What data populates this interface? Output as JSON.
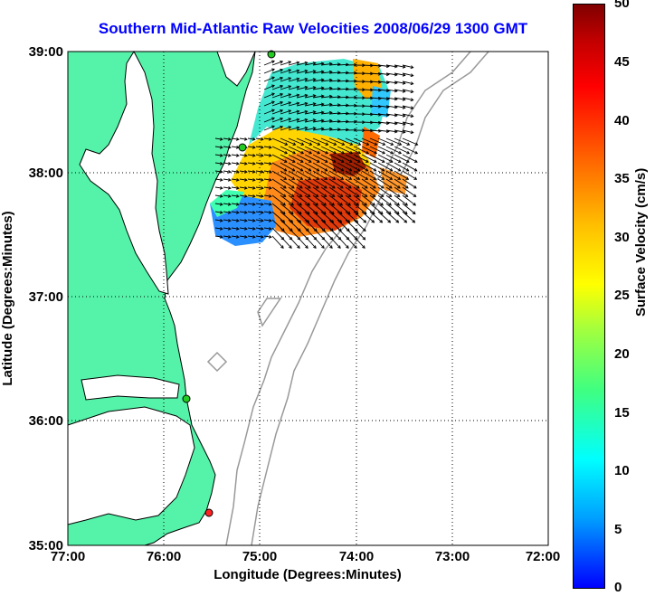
{
  "title": "Southern Mid-Atlantic Raw Velocities 2008/06/29 1300 GMT",
  "xlabel": "Longitude (Degrees:Minutes)",
  "ylabel": "Latitude (Degrees:Minutes)",
  "x_ticks": [
    "77:00",
    "76:00",
    "75:00",
    "74:00",
    "73:00",
    "72:00"
  ],
  "y_ticks": [
    "39:00",
    "38:00",
    "37:00",
    "36:00",
    "35:00"
  ],
  "colorbar": {
    "label": "Surface Velocity (cm/s)",
    "ticks": [
      "50",
      "45",
      "40",
      "35",
      "30",
      "25",
      "20",
      "15",
      "10",
      "5",
      "0"
    ],
    "range": [
      0,
      50
    ]
  },
  "colors": {
    "land": "#55f3a9",
    "title": "#0000ff",
    "contour": "#999999"
  },
  "stations": [
    {
      "name": "station-north",
      "color": "#22cc22"
    },
    {
      "name": "station-delmarva",
      "color": "#22cc22"
    },
    {
      "name": "station-outer-banks",
      "color": "#22cc22"
    },
    {
      "name": "station-hatteras",
      "color": "#ff2222"
    }
  ]
}
